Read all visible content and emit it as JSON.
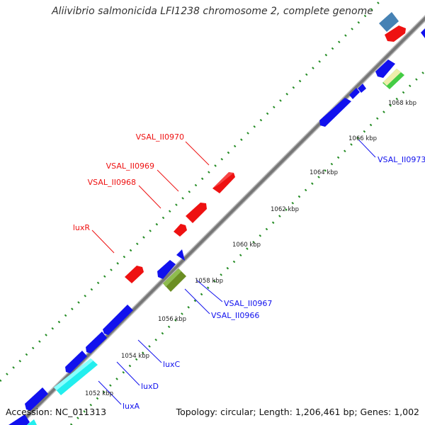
{
  "title": "Aliivibrio salmonicida LFI1238 chromosome 2, complete genome",
  "footer": {
    "accession": "Accession: NC_011313",
    "topology": "Topology: circular; Length: 1,206,461 bp; Genes: 1,002"
  },
  "colors": {
    "forward": "#ee1111",
    "reverse": "#1111ee",
    "cyan": "#22eeee",
    "olive": "#6b8e23",
    "steel": "#4682b4",
    "green": "#44cc44",
    "backbone": "#888888",
    "ticks": "#228B22"
  },
  "tick_labels": [
    {
      "label": "1052 kbp"
    },
    {
      "label": "1054 kbp"
    },
    {
      "label": "1056 kbp"
    },
    {
      "label": "1058 kbp"
    },
    {
      "label": "1060 kbp"
    },
    {
      "label": "1062 kbp"
    },
    {
      "label": "1064 kbp"
    },
    {
      "label": "1066 kbp"
    },
    {
      "label": "1068 kbp"
    }
  ],
  "gene_labels": {
    "forward": [
      {
        "name": "VSAL_II0970"
      },
      {
        "name": "VSAL_II0969"
      },
      {
        "name": "VSAL_II0968"
      },
      {
        "name": "luxR"
      }
    ],
    "reverse": [
      {
        "name": "VSAL_II0973"
      },
      {
        "name": "VSAL_II0967"
      },
      {
        "name": "VSAL_II0966"
      },
      {
        "name": "luxC"
      },
      {
        "name": "luxD"
      },
      {
        "name": "luxA"
      }
    ]
  }
}
